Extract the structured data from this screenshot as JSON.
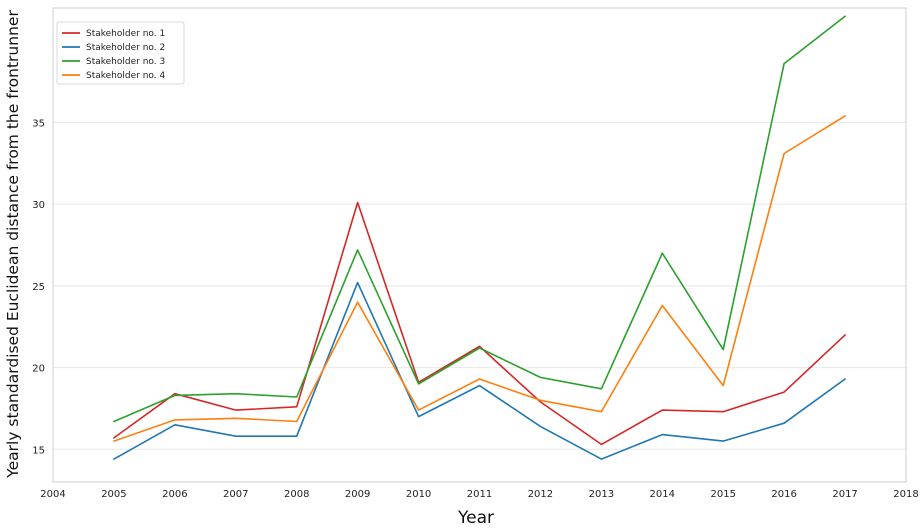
{
  "chart_data": {
    "type": "line",
    "title": "",
    "xlabel": "Year",
    "ylabel": "Yearly standardised Euclidean distance from the frontrunner",
    "x": [
      2005,
      2006,
      2007,
      2008,
      2009,
      2010,
      2011,
      2012,
      2013,
      2014,
      2015,
      2016,
      2017
    ],
    "xlim": [
      2004,
      2018
    ],
    "ylim": [
      13,
      42
    ],
    "xticks": [
      "2004",
      "2005",
      "2006",
      "2007",
      "2008",
      "2009",
      "2010",
      "2011",
      "2012",
      "2013",
      "2014",
      "2015",
      "2016",
      "2017",
      "2018"
    ],
    "yticks": [
      "15",
      "20",
      "25",
      "30",
      "35"
    ],
    "grid": "horizontal",
    "legend_position": "top-left",
    "series": [
      {
        "name": "Stakeholder no. 1",
        "color": "#d62728",
        "values": [
          15.7,
          18.4,
          17.4,
          17.6,
          30.1,
          19.1,
          21.3,
          17.9,
          15.3,
          17.4,
          17.3,
          18.5,
          22.0
        ]
      },
      {
        "name": "Stakeholder no. 2",
        "color": "#1f77b4",
        "values": [
          14.4,
          16.5,
          15.8,
          15.8,
          25.2,
          17.0,
          18.9,
          16.4,
          14.4,
          15.9,
          15.5,
          16.6,
          19.3
        ]
      },
      {
        "name": "Stakeholder no. 3",
        "color": "#2ca02c",
        "values": [
          16.7,
          18.3,
          18.4,
          18.2,
          27.2,
          19.0,
          21.2,
          19.4,
          18.7,
          27.0,
          21.1,
          38.6,
          41.5
        ]
      },
      {
        "name": "Stakeholder no. 4",
        "color": "#ff7f0e",
        "values": [
          15.5,
          16.8,
          16.9,
          16.7,
          24.0,
          17.4,
          19.3,
          18.0,
          17.3,
          23.8,
          18.9,
          33.1,
          35.4
        ]
      }
    ]
  }
}
